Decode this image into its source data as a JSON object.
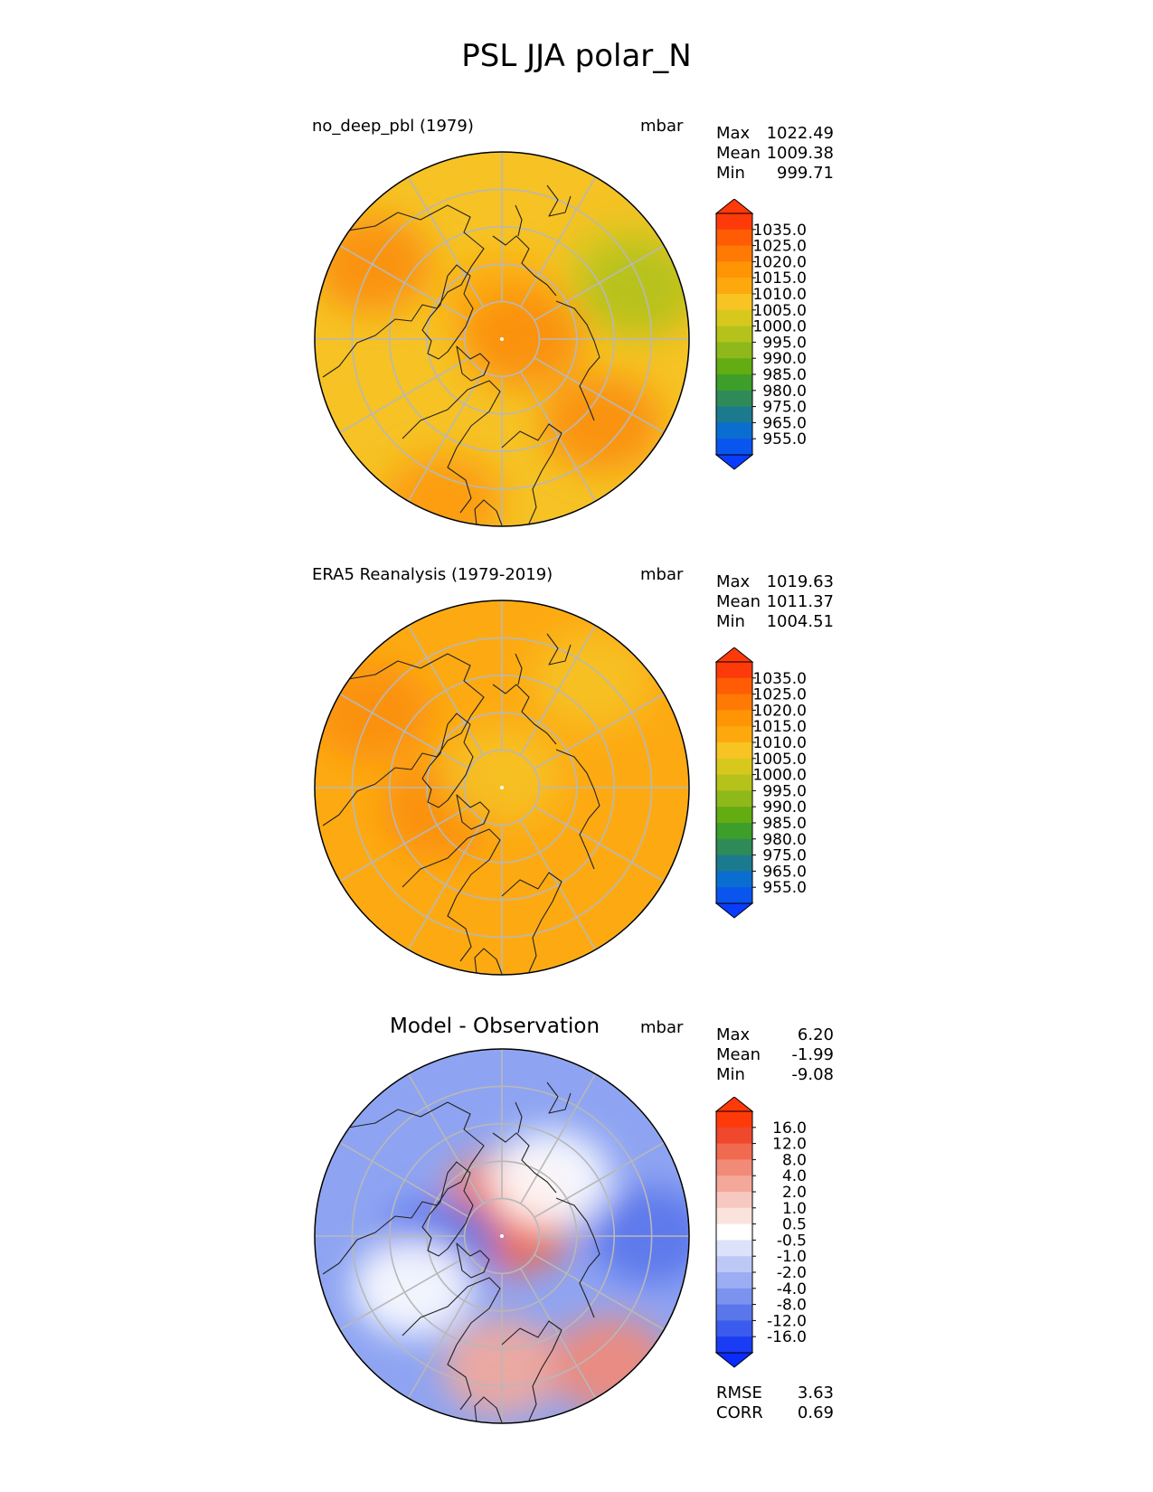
{
  "title": "PSL JJA polar_N",
  "units": "mbar",
  "chart_data": [
    {
      "type": "heatmap",
      "projection": "north-polar-stereographic",
      "title": "no_deep_pbl (1979)",
      "units": "mbar",
      "stats": [
        {
          "label": "Max",
          "value": "1022.49"
        },
        {
          "label": "Mean",
          "value": "1009.38"
        },
        {
          "label": "Min",
          "value": "999.71"
        }
      ],
      "colorbar": {
        "extend": "both",
        "ticks": [
          "1035.0",
          "1025.0",
          "1020.0",
          "1015.0",
          "1010.0",
          "1005.0",
          "1000.0",
          "995.0",
          "990.0",
          "985.0",
          "980.0",
          "975.0",
          "965.0",
          "955.0"
        ],
        "colors": [
          "#ff3a0a",
          "#ff5c05",
          "#ff7a05",
          "#ff9505",
          "#fda90e",
          "#f8c423",
          "#d8c81e",
          "#b5c21b",
          "#8fb91a",
          "#63ad12",
          "#3d9e2a",
          "#2e8b57",
          "#1c7a8e",
          "#0a6ed0",
          "#0a55ee"
        ],
        "over": "#ff3a0a",
        "under": "#0a3cff"
      },
      "field": {
        "base": "#f6c224",
        "blobs": [
          {
            "lon": 0,
            "r": 0.18,
            "v": 1015,
            "c": "#fda90e"
          },
          {
            "lon": 90,
            "r": 0.12,
            "v": 1020,
            "c": "#fb8f0a"
          },
          {
            "lon": 130,
            "r": 0.7,
            "v": 1018,
            "c": "#fb8f0a"
          },
          {
            "lon": 300,
            "r": 0.8,
            "v": 1018,
            "c": "#fb8f0a"
          },
          {
            "lon": 60,
            "r": 0.75,
            "v": 1005,
            "c": "#d8c81e"
          },
          {
            "lon": 70,
            "r": 0.78,
            "v": 1002,
            "c": "#b5c21b"
          },
          {
            "lon": 200,
            "r": 0.93,
            "v": 1017,
            "c": "#fd9a0a"
          }
        ]
      }
    },
    {
      "type": "heatmap",
      "projection": "north-polar-stereographic",
      "title": "ERA5 Reanalysis (1979-2019)",
      "units": "mbar",
      "stats": [
        {
          "label": "Max",
          "value": "1019.63"
        },
        {
          "label": "Mean",
          "value": "1011.37"
        },
        {
          "label": "Min",
          "value": "1004.51"
        }
      ],
      "colorbar": {
        "extend": "both",
        "ticks": [
          "1035.0",
          "1025.0",
          "1020.0",
          "1015.0",
          "1010.0",
          "1005.0",
          "1000.0",
          "995.0",
          "990.0",
          "985.0",
          "980.0",
          "975.0",
          "965.0",
          "955.0"
        ],
        "colors": [
          "#ff3a0a",
          "#ff5c05",
          "#ff7a05",
          "#ff9505",
          "#fda90e",
          "#f8c423",
          "#d8c81e",
          "#b5c21b",
          "#8fb91a",
          "#63ad12",
          "#3d9e2a",
          "#2e8b57",
          "#1c7a8e",
          "#0a6ed0",
          "#0a55ee"
        ],
        "over": "#ff3a0a",
        "under": "#0a3cff"
      },
      "field": {
        "base": "#fdaa12",
        "blobs": [
          {
            "lon": 40,
            "r": 0.75,
            "v": 1010,
            "c": "#f6c224"
          },
          {
            "lon": 300,
            "r": 0.8,
            "v": 1018,
            "c": "#fb8f0a"
          },
          {
            "lon": 250,
            "r": 0.35,
            "v": 1018,
            "c": "#fb8f0a"
          },
          {
            "lon": 0,
            "r": 0.07,
            "v": 1010,
            "c": "#f6c224"
          }
        ]
      }
    },
    {
      "type": "heatmap",
      "projection": "north-polar-stereographic",
      "title": "Model - Observation",
      "units": "mbar",
      "stats": [
        {
          "label": "Max",
          "value": "6.20"
        },
        {
          "label": "Mean",
          "value": "-1.99"
        },
        {
          "label": "Min",
          "value": "-9.08"
        }
      ],
      "metrics": [
        {
          "label": "RMSE",
          "value": "3.63"
        },
        {
          "label": "CORR",
          "value": "0.69"
        }
      ],
      "colorbar": {
        "extend": "both",
        "ticks": [
          "16.0",
          "12.0",
          "8.0",
          "4.0",
          "2.0",
          "1.0",
          "0.5",
          "-0.5",
          "-1.0",
          "-2.0",
          "-4.0",
          "-8.0",
          "-12.0",
          "-16.0"
        ],
        "colors": [
          "#ff3a0a",
          "#f0482d",
          "#f06a50",
          "#f28a78",
          "#f4a89a",
          "#f7c8bf",
          "#fbe3dd",
          "#ffffff",
          "#dde2fb",
          "#bdc8f7",
          "#9cadf3",
          "#7b92ef",
          "#5a76eb",
          "#3a5bed",
          "#1a3cf5"
        ],
        "over": "#ff3a0a",
        "under": "#0a2cff"
      },
      "field": {
        "base": "#8ea4f2",
        "blobs": [
          {
            "lon": 0,
            "r": 0.2,
            "v": 4,
            "c": "#f28a78"
          },
          {
            "lon": 45,
            "r": 0.08,
            "v": 6,
            "c": "#f06a50"
          },
          {
            "lon": 180,
            "r": 0.7,
            "v": 2,
            "c": "#f4a89a"
          },
          {
            "lon": 140,
            "r": 0.9,
            "v": 4,
            "c": "#f28a78"
          },
          {
            "lon": 40,
            "r": 0.4,
            "v": 0,
            "c": "#ffffff"
          },
          {
            "lon": 90,
            "r": 0.8,
            "v": -8,
            "c": "#5a76eb"
          },
          {
            "lon": 260,
            "r": 0.35,
            "v": -8,
            "c": "#5a76eb"
          },
          {
            "lon": 240,
            "r": 0.55,
            "v": 0,
            "c": "#ffffff"
          }
        ]
      }
    }
  ]
}
